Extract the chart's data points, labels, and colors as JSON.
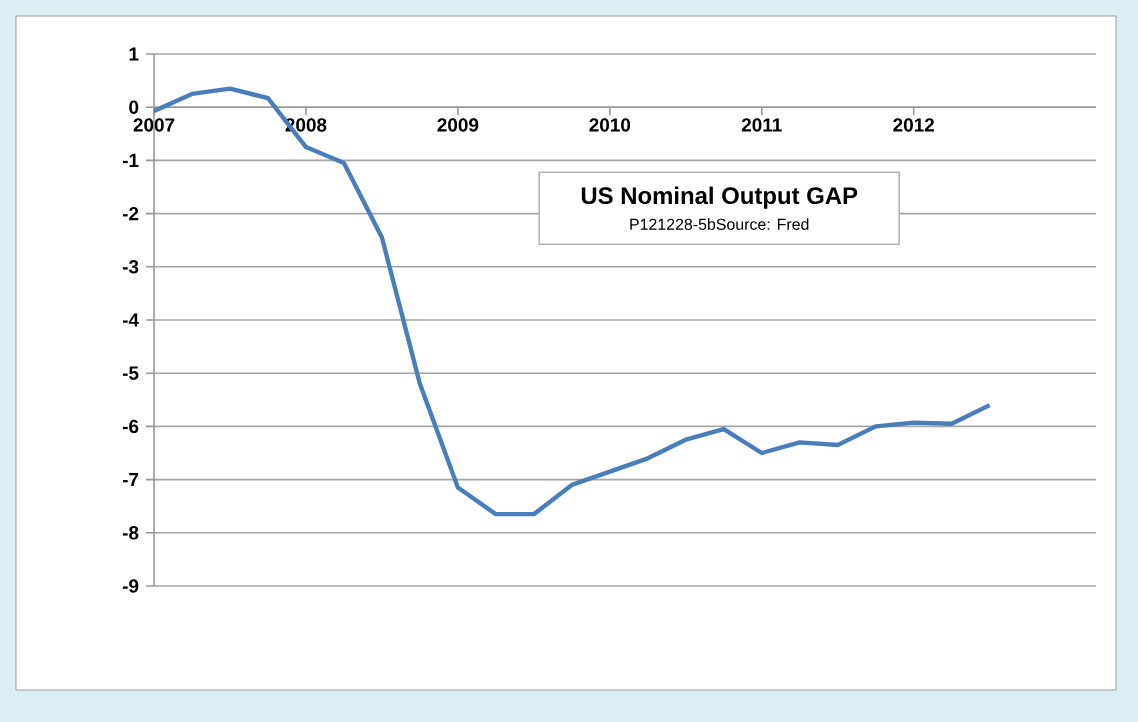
{
  "chart_data": {
    "type": "line",
    "title": "US Nominal Output GAP",
    "subtitle": "P121228-5bSource: Fred",
    "x": [
      2007,
      2007.25,
      2007.5,
      2007.75,
      2008,
      2008.25,
      2008.5,
      2008.75,
      2009,
      2009.25,
      2009.5,
      2009.75,
      2010,
      2010.25,
      2010.5,
      2010.75,
      2011,
      2011.25,
      2011.5,
      2011.75,
      2012,
      2012.25,
      2012.5
    ],
    "series": [
      {
        "color": "#4a7ebb",
        "values": [
          -0.07,
          0.25,
          0.35,
          0.17,
          -0.75,
          -1.05,
          -2.45,
          -5.2,
          -7.15,
          -7.65,
          -7.65,
          -7.1,
          -6.85,
          -6.6,
          -6.25,
          -6.05,
          -6.5,
          -6.3,
          -6.35,
          -6.0,
          -5.93,
          -5.95,
          -5.6
        ]
      }
    ],
    "xlim": [
      2007,
      2013.2
    ],
    "ylim": [
      -9,
      1
    ],
    "xticks": [
      2007,
      2008,
      2009,
      2010,
      2011,
      2012
    ],
    "yticks": [
      -9,
      -8,
      -7,
      -6,
      -5,
      -4,
      -3,
      -2,
      -1,
      0,
      1
    ],
    "grid": "y",
    "line_style": "solid",
    "marker": "none"
  }
}
